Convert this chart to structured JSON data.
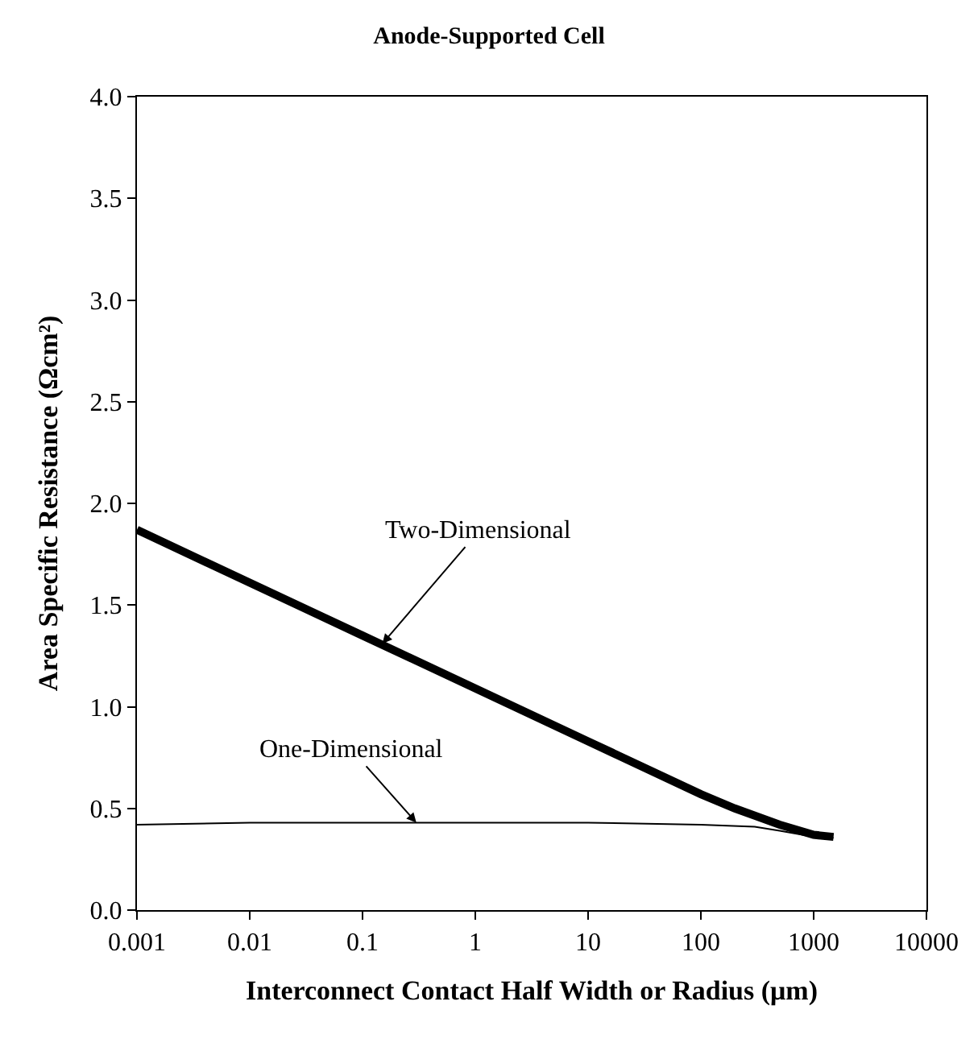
{
  "chart_data": {
    "type": "line",
    "title": "Anode-Supported Cell",
    "xlabel": "Interconnect Contact Half Width or Radius (μm)",
    "ylabel": "Area Specific Resistance (Ωcm²)",
    "log": "x",
    "marker": "none",
    "line_style": "solid",
    "xlim": [
      0.001,
      10000
    ],
    "xticks": [
      0.001,
      0.01,
      0.1,
      1,
      10,
      100,
      1000,
      10000
    ],
    "ylim": [
      0,
      4
    ],
    "yticks": [
      {
        "value": 0,
        "label": "0.0"
      },
      0.5,
      {
        "value": 1,
        "label": "1.0"
      },
      1.5,
      {
        "value": 2,
        "label": "2.0"
      },
      2.5,
      {
        "value": 3,
        "label": "3.0"
      },
      3.5,
      {
        "value": 4,
        "label": "4.0"
      }
    ],
    "series": [
      {
        "color": "#000000",
        "x": [
          0.001,
          0.01,
          0.1,
          1,
          10,
          100,
          200,
          500,
          1000,
          1500
        ],
        "values": [
          1.87,
          1.61,
          1.35,
          1.09,
          0.83,
          0.57,
          0.5,
          0.42,
          0.37,
          0.36
        ]
      },
      {
        "color": "#000000",
        "x": [
          0.001,
          0.01,
          0.1,
          1,
          10,
          100,
          300,
          500,
          1000,
          1500
        ],
        "values": [
          0.42,
          0.43,
          0.43,
          0.43,
          0.43,
          0.42,
          0.41,
          0.39,
          0.36,
          0.355
        ]
      }
    ],
    "annotations": [
      {
        "text": "Two-Dimensional",
        "x": 0.15,
        "y": 1.31
      },
      {
        "text": "One-Dimensional",
        "x": 0.3,
        "y": 0.43
      }
    ]
  }
}
